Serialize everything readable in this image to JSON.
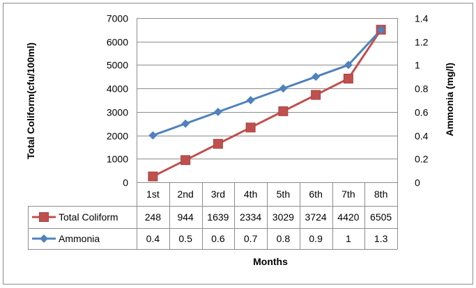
{
  "chart_data": {
    "type": "line",
    "categories": [
      "1st",
      "2nd",
      "3rd",
      "4th",
      "5th",
      "6th",
      "7th",
      "8th"
    ],
    "series": [
      {
        "name": "Total Coliform",
        "axis": "left",
        "marker": "square",
        "color": "#c0504d",
        "values": [
          248,
          944,
          1639,
          2334,
          3029,
          3724,
          4420,
          6505
        ],
        "table_values": [
          "248",
          "944",
          "1639",
          "2334",
          "3029",
          "3724",
          "4420",
          "6505"
        ]
      },
      {
        "name": "Ammonia",
        "axis": "right",
        "marker": "diamond",
        "color": "#4f81bd",
        "values": [
          0.4,
          0.5,
          0.6,
          0.7,
          0.8,
          0.9,
          1.0,
          1.3
        ],
        "table_values": [
          "0.4",
          "0.5",
          "0.6",
          "0.7",
          "0.8",
          "0.9",
          "1",
          "1.3"
        ]
      }
    ],
    "ylabel": "Total Coliform(cfu/100ml)",
    "ylabel_right": "Ammonia (mg/l)",
    "xlabel": "Months",
    "ylim": [
      0,
      7000
    ],
    "ylim_right": [
      0,
      1.4
    ],
    "yticks": [
      "0",
      "1000",
      "2000",
      "3000",
      "4000",
      "5000",
      "6000",
      "7000"
    ],
    "yticks_right": [
      "0",
      "0.2",
      "0.4",
      "0.6",
      "0.8",
      "1",
      "1.2",
      "1.4"
    ],
    "grid": true,
    "legend": "data table"
  }
}
